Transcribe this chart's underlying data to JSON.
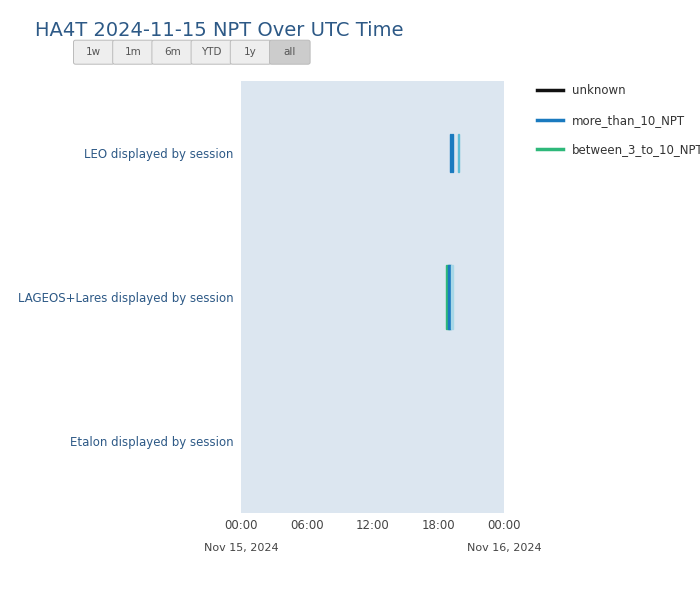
{
  "title": "HA4T 2024-11-15 NPT Over UTC Time",
  "title_color": "#2d5986",
  "title_fontsize": 14,
  "background_color": "#ffffff",
  "plot_bg_color": "#dce6f0",
  "ytick_labels": [
    "LEO displayed by session",
    "LAGEOS+Lares displayed by session",
    "Etalon displayed by session"
  ],
  "ytick_positions": [
    2,
    1,
    0
  ],
  "xtick_labels": [
    "00:00",
    "06:00",
    "12:00",
    "18:00",
    "00:00"
  ],
  "xtick_positions": [
    0,
    6,
    12,
    18,
    24
  ],
  "xlabel_dates": [
    "Nov 15, 2024",
    "Nov 16, 2024"
  ],
  "xlim": [
    0,
    24
  ],
  "ylim": [
    -0.5,
    2.5
  ],
  "filter_buttons": [
    "1w",
    "1m",
    "6m",
    "YTD",
    "1y",
    "all"
  ],
  "active_button": "all",
  "legend_items": [
    {
      "label": "unknown",
      "color": "#111111"
    },
    {
      "label": "more_than_10_NPT",
      "color": "#1a7abf"
    },
    {
      "label": "between_3_to_10_NPT",
      "color": "#2eb87a"
    }
  ],
  "sessions": [
    {
      "row": 2,
      "color": "#1a7abf",
      "start": 19.05,
      "end": 19.17,
      "half_height": 0.13
    },
    {
      "row": 2,
      "color": "#1a7abf",
      "start": 19.28,
      "end": 19.38,
      "half_height": 0.13
    },
    {
      "row": 2,
      "color": "#5bbcd6",
      "start": 19.82,
      "end": 19.92,
      "half_height": 0.13
    },
    {
      "row": 1,
      "color": "#2eb87a",
      "start": 18.72,
      "end": 19.02,
      "half_height": 0.22
    },
    {
      "row": 1,
      "color": "#1a7abf",
      "start": 18.88,
      "end": 19.18,
      "half_height": 0.22
    },
    {
      "row": 1,
      "color": "#a8d8e8",
      "start": 19.18,
      "end": 19.32,
      "half_height": 0.22
    }
  ]
}
